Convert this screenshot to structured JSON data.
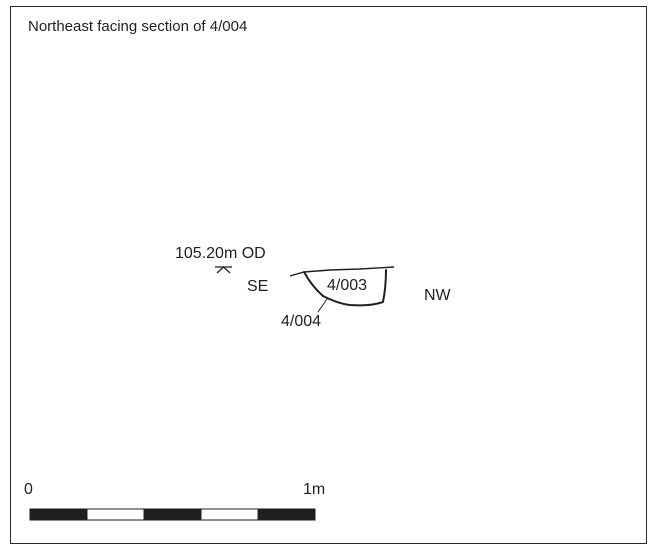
{
  "title": "Northeast facing section of 4/004",
  "datum": {
    "label": "105.20m OD"
  },
  "orientation": {
    "left": "SE",
    "right": "NW"
  },
  "section": {
    "fill_label": "4/003",
    "cut_label": "4/004"
  },
  "scale_bar": {
    "start_label": "0",
    "end_label": "1m",
    "segments": 5
  },
  "colors": {
    "ink": "#1f1f1f",
    "background": "#ffffff",
    "scale_dark": "#1f1f1f",
    "scale_light": "#ffffff"
  }
}
